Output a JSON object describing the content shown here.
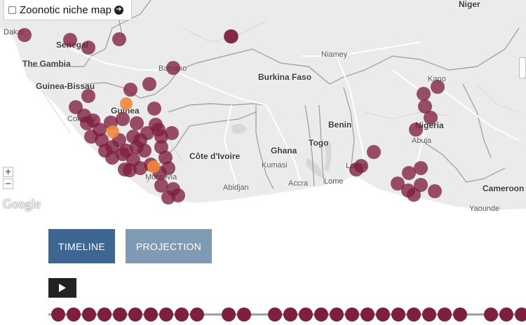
{
  "layer_toggle": {
    "label": "Zoonotic niche map",
    "checked": false
  },
  "map": {
    "countries": [
      "Guinea-Bissau",
      "Burkina Faso",
      "Côte d'Ivoire",
      "Ghana",
      "Togo",
      "Benin",
      "Nigeria",
      "Cameroon",
      "The Gambia",
      "Senegal",
      "Guinea",
      "Niger"
    ],
    "cities": [
      "Dakar",
      "Bamako",
      "Niamey",
      "Kano",
      "Abuja",
      "Kumasi",
      "Accra",
      "Lome",
      "Abidjan",
      "Yaounde",
      "Lagos",
      "Conakry",
      "Monrovia"
    ],
    "zoom_in": "+",
    "zoom_out": "−",
    "attribution": "Google",
    "marker_colors": {
      "case": "#7d1f3e",
      "recent": "#f0883a"
    }
  },
  "controls": {
    "timeline_label": "TIMELINE",
    "projection_label": "PROJECTION",
    "play_icon": "play-icon"
  },
  "colors": {
    "timeline_active": "#3c6792",
    "projection": "#7f9ab5",
    "dot": "#7d1f3e",
    "track": "#9c9c9c"
  }
}
